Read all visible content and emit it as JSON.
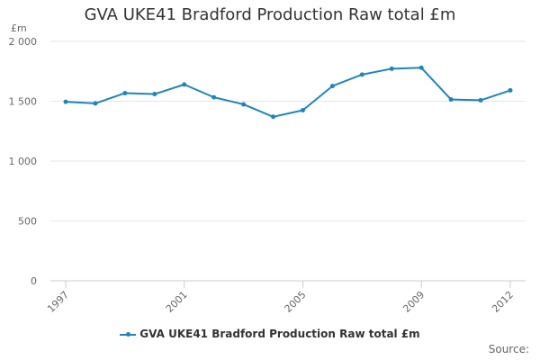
{
  "chart_data": {
    "type": "line",
    "title": "GVA UKE41 Bradford Production Raw total £m",
    "ylabel": "£m",
    "xlabel": "",
    "x": [
      1997,
      1998,
      1999,
      2000,
      2001,
      2002,
      2003,
      2004,
      2005,
      2006,
      2007,
      2008,
      2009,
      2010,
      2011,
      2012
    ],
    "xticks": [
      "1997",
      "2001",
      "2005",
      "2009",
      "2012"
    ],
    "ylim": [
      0,
      2000
    ],
    "yticks": [
      "0",
      "500",
      "1 000",
      "1 500",
      "2 000"
    ],
    "series": [
      {
        "name": "GVA UKE41 Bradford Production Raw total £m",
        "color": "#1f85b8",
        "values": [
          1495,
          1482,
          1568,
          1560,
          1640,
          1533,
          1474,
          1370,
          1425,
          1627,
          1723,
          1772,
          1780,
          1515,
          1508,
          1591
        ]
      }
    ],
    "grid": true,
    "legend": "bottom-center"
  },
  "source_label": "Source:"
}
